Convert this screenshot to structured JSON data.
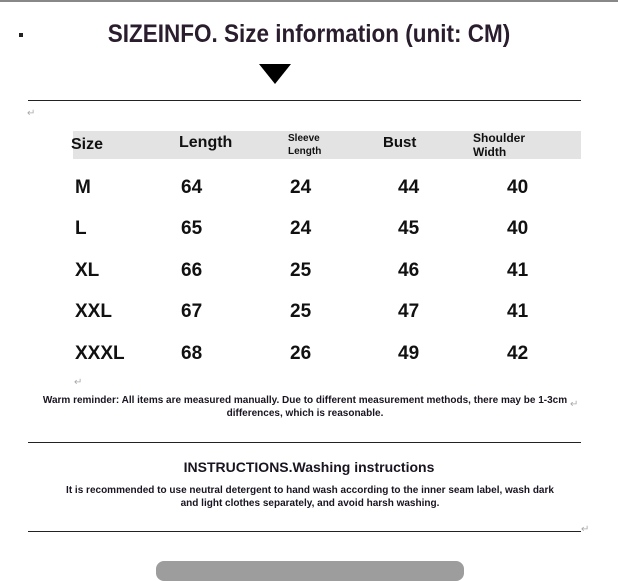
{
  "title": "SIZEINFO. Size information (unit: CM)",
  "table": {
    "headers": [
      "Size",
      "Length",
      "Sleeve Length",
      "Bust",
      "Shoulder Width"
    ],
    "rows": [
      [
        "M",
        "64",
        "24",
        "44",
        "40"
      ],
      [
        "L",
        "65",
        "24",
        "45",
        "40"
      ],
      [
        "XL",
        "66",
        "25",
        "46",
        "41"
      ],
      [
        "XXL",
        "67",
        "25",
        "47",
        "41"
      ],
      [
        "XXXL",
        "68",
        "26",
        "49",
        "42"
      ]
    ]
  },
  "reminder": "Warm reminder: All items are measured manually. Due to different measurement methods, there may be 1-3cm differences, which is reasonable.",
  "instructions": {
    "title": "INSTRUCTIONS.Washing instructions",
    "body": "It is recommended to use neutral detergent to hand wash according to the inner seam label, wash dark and light clothes separately, and avoid harsh washing."
  },
  "paragraph_mark": "↵"
}
